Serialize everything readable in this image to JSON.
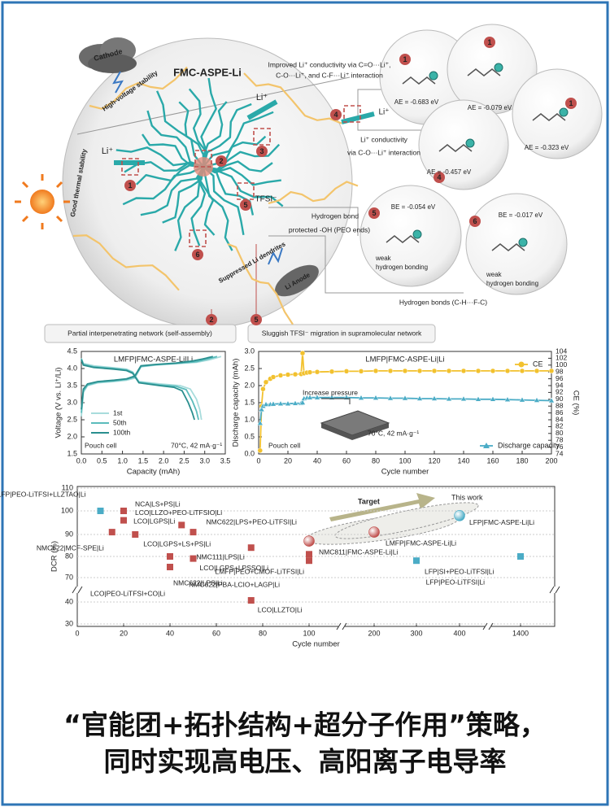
{
  "schematic": {
    "title": "FMC-ASPE-Li",
    "cathode": "Cathode",
    "high_voltage": "High-voltage stability",
    "thermal": "Good thermal stability",
    "dendrites": "Suppressed Li dendrites",
    "anode": "Li Anode",
    "li_ion": "Li⁺",
    "tfsi": "TFSI⁻",
    "improved_conductivity": [
      "Improved Li⁺ conductivity via C=O···Li⁺,",
      "C-O···Li⁺, and C-F···Li⁺ interaction"
    ],
    "conductivity": [
      "Li⁺ conductivity",
      "via C-O···Li⁺ interaction"
    ],
    "hydrogen_bond": "Hydrogen bond",
    "protected": "protected -OH (PEO ends)",
    "energies": [
      "AE = -0.683 eV",
      "AE = -0.079 eV",
      "AE = -0.323 eV",
      "AE = -0.457 eV",
      "BE = -0.054 eV",
      "BE = -0.017 eV"
    ],
    "weak_bonding": [
      "weak",
      "hydrogen bonding"
    ],
    "hydrogen_bonds": "Hydrogen bonds (C-H···F-C)",
    "network": "Partial interpenetrating network (self-assembly)",
    "sluggish": "Sluggish TFSI⁻ migration in supramolecular network",
    "markers": [
      "1",
      "2",
      "3",
      "4",
      "5",
      "6"
    ]
  },
  "chart_data": [
    {
      "type": "line",
      "title": "LMFP|FMC-ASPE-Li|Li",
      "xlabel": "Capacity (mAh)",
      "ylabel": "Voltage (V vs. Li⁺/Li)",
      "annotations": [
        "Pouch cell",
        "70°C, 42 mA·g⁻¹"
      ],
      "xlim": [
        0,
        3.5
      ],
      "ylim": [
        1.5,
        4.5
      ],
      "xticks": [
        {
          "value": 0,
          "label": "0.0"
        },
        0.5,
        {
          "value": 1,
          "label": "1.0"
        },
        1.5,
        {
          "value": 2,
          "label": "2.0"
        },
        2.5,
        {
          "value": 3,
          "label": "3.0"
        },
        3.5
      ],
      "yticks": [
        1.5,
        {
          "value": 2,
          "label": "2.0"
        },
        2.5,
        {
          "value": 3,
          "label": "3.0"
        },
        3.5,
        {
          "value": 4,
          "label": "4.0"
        },
        4.5
      ],
      "series": [
        {
          "name": "1st",
          "color": "#a8dcdc",
          "x": [
            0,
            0.05,
            0.15,
            0.4,
            0.8,
            1.1,
            1.3,
            1.45,
            1.8,
            2.3,
            2.8,
            3.1,
            3.4,
            null,
            0,
            0.05,
            0.3,
            0.8,
            1.1,
            1.25,
            1.4,
            1.9,
            2.4,
            2.65,
            2.8,
            2.88,
            2.92
          ],
          "values": [
            2.6,
            3.3,
            3.5,
            3.58,
            3.62,
            3.66,
            3.72,
            4.05,
            4.1,
            4.14,
            4.18,
            4.25,
            4.35,
            null,
            4.3,
            4.15,
            4.08,
            4.02,
            3.98,
            3.9,
            3.62,
            3.55,
            3.5,
            3.4,
            3.1,
            2.8,
            2.5
          ]
        },
        {
          "name": "50th",
          "color": "#5bbcbc",
          "x": [
            0,
            0.05,
            0.15,
            0.4,
            0.8,
            1.1,
            1.3,
            1.45,
            1.8,
            2.3,
            2.8,
            3.0,
            3.3,
            null,
            0,
            0.05,
            0.3,
            0.8,
            1.1,
            1.25,
            1.4,
            1.9,
            2.3,
            2.55,
            2.7,
            2.8,
            2.85
          ],
          "values": [
            2.7,
            3.35,
            3.52,
            3.6,
            3.64,
            3.68,
            3.75,
            4.06,
            4.11,
            4.15,
            4.2,
            4.26,
            4.35,
            null,
            4.28,
            4.12,
            4.05,
            4.0,
            3.96,
            3.88,
            3.6,
            3.52,
            3.48,
            3.38,
            3.05,
            2.75,
            2.5
          ]
        },
        {
          "name": "100th",
          "color": "#2a8f8f",
          "x": [
            0,
            0.05,
            0.15,
            0.4,
            0.8,
            1.1,
            1.3,
            1.45,
            1.8,
            2.3,
            2.7,
            2.95,
            3.2,
            null,
            0,
            0.05,
            0.3,
            0.8,
            1.1,
            1.25,
            1.4,
            1.9,
            2.25,
            2.45,
            2.6,
            2.7,
            2.75
          ],
          "values": [
            2.8,
            3.4,
            3.55,
            3.62,
            3.66,
            3.7,
            3.78,
            4.08,
            4.12,
            4.16,
            4.22,
            4.28,
            4.35,
            null,
            4.26,
            4.1,
            4.03,
            3.98,
            3.94,
            3.86,
            3.58,
            3.5,
            3.45,
            3.35,
            3.0,
            2.7,
            2.5
          ]
        }
      ]
    },
    {
      "type": "line",
      "title": "LMFP|FMC-ASPE-Li|Li",
      "xlabel": "Cycle number",
      "ylabel": "Discharge capacity (mAh)",
      "y2label": "CE (%)",
      "annotations": [
        "Increase pressure",
        "Pouch cell",
        "70°C, 42 mA·g⁻¹"
      ],
      "xlim": [
        0,
        200
      ],
      "ylim": [
        0,
        3
      ],
      "y2lim": [
        74,
        104
      ],
      "xticks": [
        0,
        20,
        40,
        60,
        80,
        100,
        120,
        140,
        160,
        180,
        200
      ],
      "yticks": [
        {
          "value": 0,
          "label": "0.0"
        },
        0.5,
        {
          "value": 1,
          "label": "1.0"
        },
        1.5,
        {
          "value": 2,
          "label": "2.0"
        },
        2.5,
        {
          "value": 3,
          "label": "3.0"
        }
      ],
      "y2ticks": [
        74,
        76,
        78,
        80,
        82,
        84,
        86,
        88,
        90,
        92,
        94,
        96,
        98,
        100,
        102,
        104
      ],
      "x": [
        1,
        2,
        3,
        5,
        8,
        10,
        15,
        20,
        25,
        29,
        30,
        31,
        33,
        35,
        40,
        50,
        60,
        70,
        80,
        90,
        100,
        110,
        120,
        130,
        140,
        150,
        160,
        170,
        180,
        190,
        200
      ],
      "series": [
        {
          "name": "CE",
          "color": "#f2c12e",
          "axis": "y2",
          "marker": "circle",
          "values": [
            75,
            88,
            93,
            95,
            96,
            96.5,
            97,
            97.2,
            97.3,
            97.4,
            103.5,
            97.6,
            97.8,
            97.9,
            98,
            98.1,
            98.2,
            98.2,
            98.3,
            98.3,
            98.3,
            98.3,
            98.3,
            98.3,
            98.3,
            98.3,
            98.3,
            98.3,
            98.3,
            98.3,
            98.3
          ]
        },
        {
          "name": "Discharge capacity",
          "color": "#4bacc6",
          "marker": "triangle",
          "values": [
            0.9,
            1.3,
            1.4,
            1.45,
            1.45,
            1.46,
            1.47,
            1.47,
            1.48,
            1.48,
            1.5,
            1.62,
            1.64,
            1.65,
            1.65,
            1.65,
            1.65,
            1.64,
            1.64,
            1.63,
            1.63,
            1.62,
            1.62,
            1.61,
            1.61,
            1.6,
            1.6,
            1.59,
            1.58,
            1.57,
            1.56
          ]
        }
      ]
    },
    {
      "type": "scatter",
      "xlabel": "Cycle number",
      "ylabel": "DCR (%)",
      "annotations": [
        "This work",
        "Target"
      ],
      "grid": true,
      "xlim": [
        0,
        1500
      ],
      "ylim": [
        30,
        110
      ],
      "xticks": [
        0,
        20,
        40,
        60,
        80,
        100,
        200,
        300,
        400,
        1400
      ],
      "yticks": [
        30,
        40,
        70,
        80,
        90,
        100,
        110
      ],
      "points": [
        {
          "label": "LFP|PEO-LiTFSI+LLZTAO|Li",
          "x": 10,
          "y": 100,
          "color": "#4bacc6",
          "shape": "square"
        },
        {
          "label": "NCA|LS+PS|Li",
          "x": 20,
          "y": 100,
          "color": "#c0504d",
          "shape": "square"
        },
        {
          "label": "LCO|LLZO+PEO-LiTFSIO|Li",
          "x": 20,
          "y": 96,
          "color": "#c0504d",
          "shape": "square"
        },
        {
          "label": "LCO|LGPS|Li",
          "x": 45,
          "y": 94,
          "color": "#c0504d",
          "shape": "square"
        },
        {
          "label": "NMC622|LPS+PEO-LiTFSI|Li",
          "x": 50,
          "y": 91,
          "color": "#c0504d",
          "shape": "square"
        },
        {
          "label": "NMC622|MCF-SPE|Li",
          "x": 15,
          "y": 91,
          "color": "#c0504d",
          "shape": "square"
        },
        {
          "label": "LCO|LGPS+LS+PS|Li",
          "x": 25,
          "y": 90,
          "color": "#c0504d",
          "shape": "square"
        },
        {
          "label": "NMC111|LPS|Li",
          "x": 75,
          "y": 84,
          "color": "#c0504d",
          "shape": "square"
        },
        {
          "label": "LCO|LGPS+LPSSO|Li",
          "x": 50,
          "y": 79,
          "color": "#c0504d",
          "shape": "square"
        },
        {
          "label": "NMC622|LPS|Li",
          "x": 40,
          "y": 75,
          "color": "#c0504d",
          "shape": "square"
        },
        {
          "label": "LCO|PEO-LiTFSI+CO|Li",
          "x": 40,
          "y": 80,
          "color": "#c0504d",
          "shape": "square"
        },
        {
          "label": "LCO|LLZTO|Li",
          "x": 75,
          "y": 42,
          "color": "#c0504d",
          "shape": "square"
        },
        {
          "label": "LMFP|PEO+CMOF-LiTFSI|Li",
          "x": 100,
          "y": 81,
          "color": "#c0504d",
          "shape": "square"
        },
        {
          "label": "NMC622|PBA-LCIO+LAGP|Li",
          "x": 100,
          "y": 78,
          "color": "#c0504d",
          "shape": "square"
        },
        {
          "label": "NMC811|FMC-ASPE-Li|Li",
          "x": 100,
          "y": 87,
          "color": "#c0504d",
          "shape": "sphere"
        },
        {
          "label": "LMFP|FMC-ASPE-Li|Li",
          "x": 200,
          "y": 91,
          "color": "#c0504d",
          "shape": "sphere"
        },
        {
          "label": "LFP|FMC-ASPE-Li|Li",
          "x": 400,
          "y": 98,
          "color": "#4bacc6",
          "shape": "sphere"
        },
        {
          "label": "LFP|SI+PEO-LiTFSI|Li",
          "x": 300,
          "y": 78,
          "color": "#4bacc6",
          "shape": "square"
        },
        {
          "label": "LFP|PEO-LiTFSI|Li",
          "x": 1400,
          "y": 80,
          "color": "#4bacc6",
          "shape": "square"
        }
      ]
    }
  ],
  "caption": [
    "“官能团+拓扑结构+超分子作用”策略，",
    "同时实现高电压、高阳离子电导率"
  ]
}
